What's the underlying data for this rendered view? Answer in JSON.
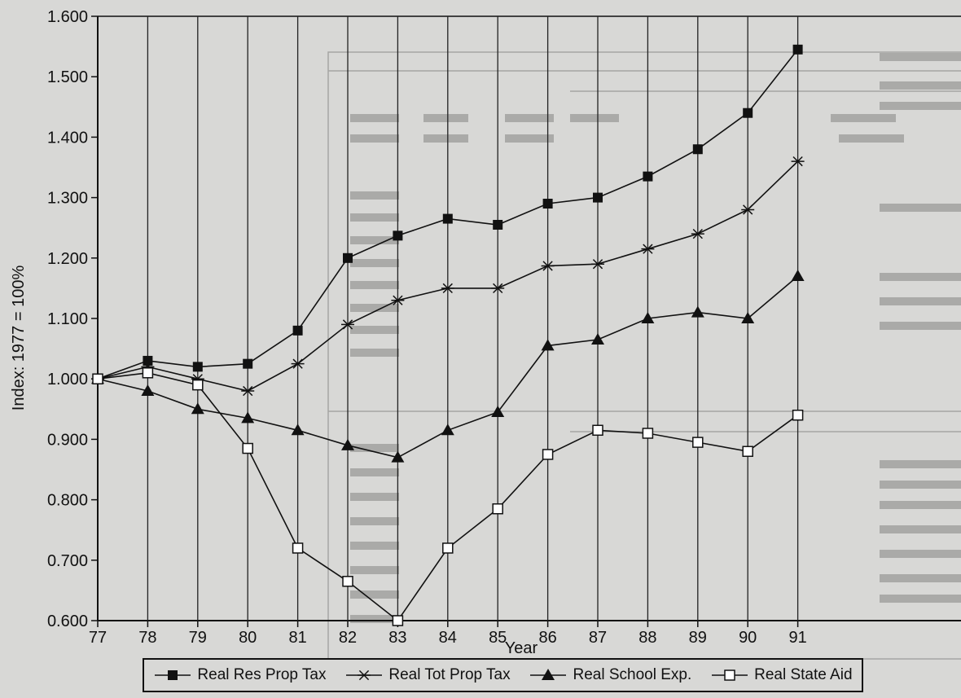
{
  "chart_data": {
    "type": "line",
    "title": "",
    "xlabel": "Year",
    "ylabel": "Index: 1977 = 100%",
    "x": [
      "77",
      "78",
      "79",
      "80",
      "81",
      "82",
      "83",
      "84",
      "85",
      "86",
      "87",
      "88",
      "89",
      "90",
      "91"
    ],
    "ylim": [
      0.6,
      1.6
    ],
    "yticks": [
      "0.600",
      "0.700",
      "0.800",
      "0.900",
      "1.000",
      "1.100",
      "1.200",
      "1.300",
      "1.400",
      "1.500",
      "1.600"
    ],
    "grid": "vertical",
    "legend_position": "bottom",
    "series": [
      {
        "name": "Real Res Prop Tax",
        "marker": "filled-square",
        "values": [
          1.0,
          1.03,
          1.02,
          1.025,
          1.08,
          1.2,
          1.237,
          1.265,
          1.255,
          1.29,
          1.3,
          1.335,
          1.38,
          1.44,
          1.545
        ]
      },
      {
        "name": "Real Tot Prop Tax",
        "marker": "star",
        "values": [
          1.0,
          1.02,
          1.0,
          0.98,
          1.025,
          1.09,
          1.13,
          1.15,
          1.15,
          1.187,
          1.19,
          1.215,
          1.24,
          1.28,
          1.36
        ]
      },
      {
        "name": "Real School Exp.",
        "marker": "filled-triangle",
        "values": [
          1.0,
          0.98,
          0.95,
          0.935,
          0.915,
          0.89,
          0.87,
          0.915,
          0.945,
          1.055,
          1.065,
          1.1,
          1.11,
          1.1,
          1.17
        ]
      },
      {
        "name": "Real State Aid",
        "marker": "open-square",
        "values": [
          1.0,
          1.01,
          0.99,
          0.885,
          0.72,
          0.665,
          0.6,
          0.72,
          0.785,
          0.875,
          0.915,
          0.91,
          0.895,
          0.88,
          0.94
        ]
      }
    ]
  }
}
